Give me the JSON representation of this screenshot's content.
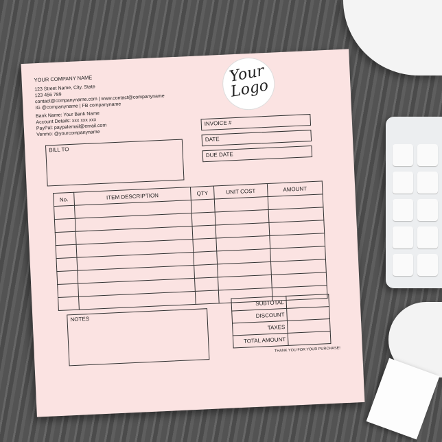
{
  "company": {
    "name": "YOUR COMPANY NAME",
    "lines": [
      "123 Street Name, City, State",
      "123 456 789",
      "contact@companyname.com | www.contact@companyname",
      "IG @companyname | FB companyname"
    ],
    "bank": [
      "Bank Name: Your Bank Name",
      "Account Details: xxx xxx xxx",
      "PayPal: paypalemail@email.com",
      "Venmo: @yourcompanyname"
    ]
  },
  "logo": {
    "line1": "Your",
    "line2": "Logo"
  },
  "bill_to": "BILL TO",
  "invoice_fields": [
    "INVOICE #",
    "DATE",
    "DUE DATE"
  ],
  "table": {
    "headers": [
      "No.",
      "ITEM DESCRIPTION",
      "QTY",
      "UNIT COST",
      "AMOUNT"
    ]
  },
  "notes": "NOTES",
  "totals": [
    "SUBTOTAL",
    "DISCOUNT",
    "TAXES",
    "TOTAL AMOUNT"
  ],
  "thanks": "THANK YOU FOR YOUR PURCHASE!"
}
